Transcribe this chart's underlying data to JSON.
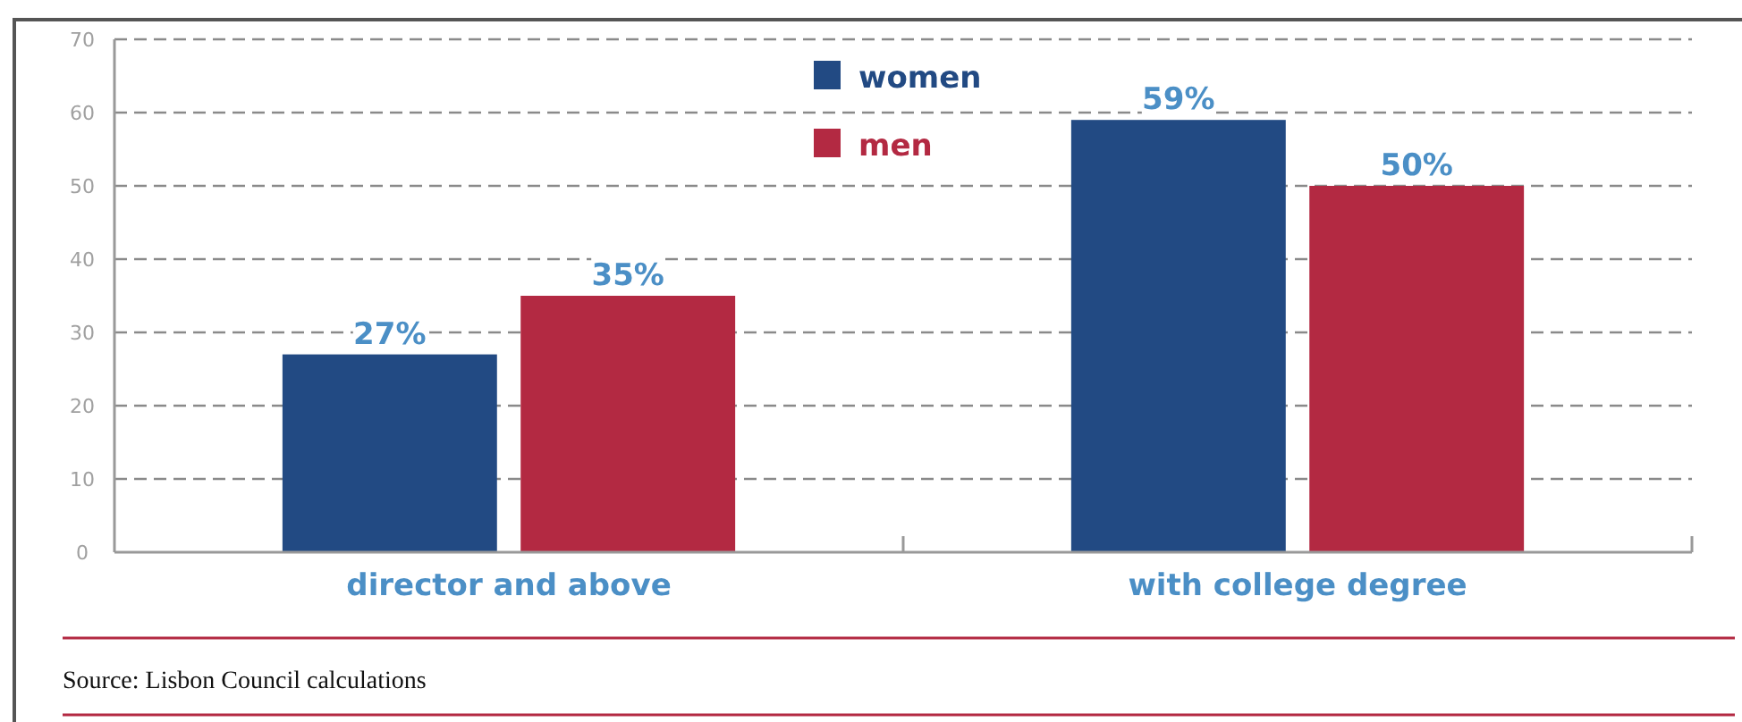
{
  "chart_data": {
    "type": "bar",
    "categories": [
      "director and above",
      "with college degree"
    ],
    "series": [
      {
        "name": "women",
        "color": "#224a83",
        "values": [
          27,
          59
        ],
        "value_labels": [
          "27%",
          "59%"
        ]
      },
      {
        "name": "men",
        "color": "#b32942",
        "values": [
          35,
          50
        ],
        "value_labels": [
          "35%",
          "50%"
        ]
      }
    ],
    "ylim": [
      0,
      70
    ],
    "yticks": [
      0,
      10,
      20,
      30,
      40,
      50,
      60,
      70
    ],
    "grid": "y",
    "legend": "top",
    "annotations": [
      "Source: Lisbon Council calculations"
    ]
  }
}
